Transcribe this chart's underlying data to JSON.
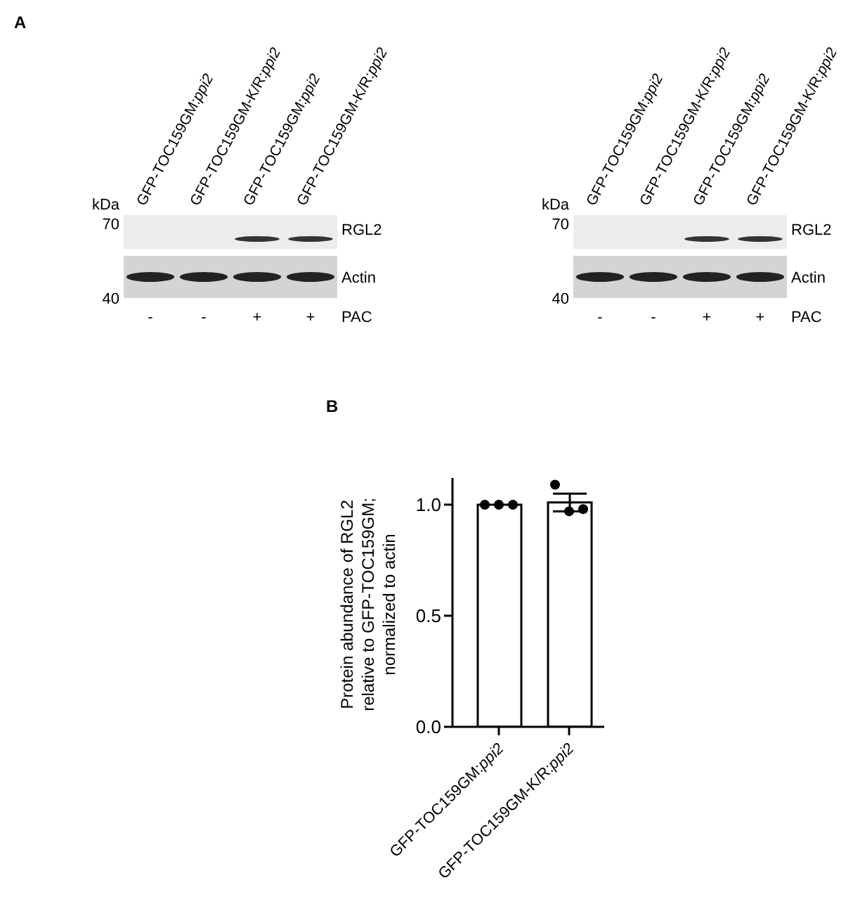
{
  "chart_data": [
    {
      "type": "other",
      "title": "A",
      "categories": [
        "GFP-TOC159GM:ppi2",
        "GFP-TOC159GM-K/R:ppi2",
        "GFP-TOC159GM:ppi2",
        "GFP-TOC159GM-K/R:ppi2"
      ],
      "annotations": [
        "kDa",
        "70",
        "40",
        "RGL2",
        "Actin",
        "-",
        "-",
        "+",
        "+",
        "PAC"
      ]
    },
    {
      "type": "other",
      "categories": [
        "GFP-TOC159GM:ppi2",
        "GFP-TOC159GM-K/R:ppi2",
        "GFP-TOC159GM:ppi2",
        "GFP-TOC159GM-K/R:ppi2"
      ],
      "annotations": [
        "kDa",
        "70",
        "40",
        "RGL2",
        "Actin",
        "-",
        "-",
        "+",
        "+",
        "PAC"
      ]
    },
    {
      "type": "bar",
      "title": "B",
      "ylabel": "Protein abundance of RGL2\nrelative to GFP-TOC159GM;\nnormalized to actin",
      "categories": [
        "GFP-TOC159GM:ppi2",
        "GFP-TOC159GM-K/R:ppi2"
      ],
      "values": [
        1.0,
        1.01
      ],
      "errors": [
        null,
        0.04
      ],
      "color": "#ffffff",
      "ylim": [
        0,
        1.12
      ],
      "yticks": [
        {
          "value": 0,
          "label": "0.0"
        },
        {
          "value": 0.5,
          "label": "0.5"
        },
        {
          "value": 1,
          "label": "1.0"
        }
      ],
      "grid": false,
      "legend": false,
      "series": [
        {
          "type": "scatter",
          "color": "#000000",
          "x": [
            "GFP-TOC159GM:ppi2",
            "GFP-TOC159GM:ppi2",
            "GFP-TOC159GM:ppi2",
            "GFP-TOC159GM-K/R:ppi2",
            "GFP-TOC159GM-K/R:ppi2",
            "GFP-TOC159GM-K/R:ppi2"
          ],
          "values": [
            1.0,
            1.0,
            1.0,
            1.09,
            0.97,
            0.98
          ]
        }
      ]
    }
  ]
}
